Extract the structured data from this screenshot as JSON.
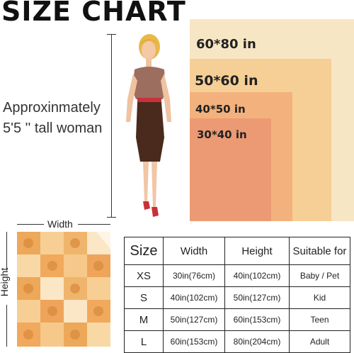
{
  "title": "SIZE CHART",
  "reference": {
    "line1": "Approxinmately",
    "line2": "5'5 '' tall woman"
  },
  "blanket_sizes": [
    {
      "label": "60*80 in",
      "color": "#f7e6c4"
    },
    {
      "label": "50*60 in",
      "color": "#f6cf96"
    },
    {
      "label": "40*50 in",
      "color": "#f3b27d"
    },
    {
      "label": "30*40 in",
      "color": "#ec9a73"
    }
  ],
  "diagram": {
    "width_label": "Width",
    "height_label": "Height"
  },
  "table": {
    "headers": [
      "Size",
      "Width",
      "Height",
      "Suitable for"
    ],
    "rows": [
      {
        "size": "XS",
        "width": "30in(76cm)",
        "height": "40in(102cm)",
        "suitable": "Baby / Pet"
      },
      {
        "size": "S",
        "width": "40in(102cm)",
        "height": "50in(127cm)",
        "suitable": "Kid"
      },
      {
        "size": "M",
        "width": "50in(127cm)",
        "height": "60in(153cm)",
        "suitable": "Teen"
      },
      {
        "size": "L",
        "width": "60in(153cm)",
        "height": "80in(204cm)",
        "suitable": "Adult"
      }
    ]
  }
}
